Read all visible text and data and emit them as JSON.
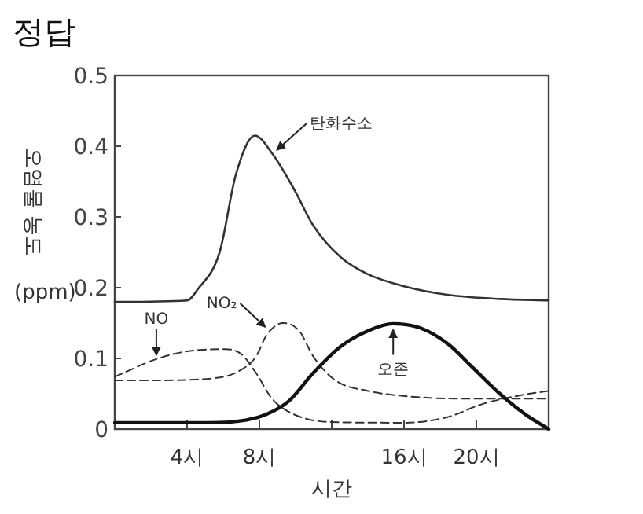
{
  "chart_data": {
    "type": "line",
    "title": "정답",
    "xlabel": "시간",
    "ylabel": "오염물 농도 (ppm)",
    "xlim": [
      0,
      24
    ],
    "xticks": [
      {
        "value": 4,
        "label": "4시"
      },
      {
        "value": 8,
        "label": "8시"
      },
      {
        "value": 12,
        "label": null
      },
      {
        "value": 16,
        "label": "16시"
      },
      {
        "value": 20,
        "label": "20시"
      }
    ],
    "ylim": [
      0,
      0.5
    ],
    "yticks": [
      0,
      0.1,
      0.2,
      0.3,
      0.4,
      0.5
    ],
    "grid": false,
    "marker": "none",
    "series": [
      {
        "color": "#333333",
        "line_style": "solid",
        "x": [
          0,
          4,
          4.6,
          5.8,
          6.7,
          7.75,
          8.7,
          9.9,
          11,
          12.5,
          14,
          16,
          18.4,
          21.3,
          24
        ],
        "values": [
          0.18,
          0.182,
          0.198,
          0.25,
          0.36,
          0.415,
          0.39,
          0.34,
          0.287,
          0.243,
          0.219,
          0.202,
          0.19,
          0.184,
          0.182
        ]
      },
      {
        "color": "#333333",
        "line_style": "dashed",
        "x": [
          0,
          2.3,
          4,
          6.1,
          7,
          7.8,
          8.7,
          9.9,
          11.9,
          16,
          18.4,
          20.4,
          22.7,
          24
        ],
        "values": [
          0.074,
          0.099,
          0.11,
          0.113,
          0.106,
          0.08,
          0.043,
          0.021,
          0.01,
          0.009,
          0.017,
          0.036,
          0.049,
          0.054
        ]
      },
      {
        "color": "#333333",
        "line_style": "dashed",
        "x": [
          0,
          2.3,
          5.8,
          7,
          7.8,
          8.4,
          9.3,
          10.2,
          11,
          12.2,
          14,
          16.9,
          19.8,
          24
        ],
        "values": [
          0.069,
          0.069,
          0.073,
          0.084,
          0.102,
          0.133,
          0.15,
          0.139,
          0.102,
          0.069,
          0.054,
          0.045,
          0.043,
          0.043
        ]
      },
      {
        "color": "#111111",
        "line_style": "solid",
        "x": [
          0,
          5.2,
          7.3,
          8.4,
          9.6,
          11,
          12.5,
          14,
          15.4,
          16.9,
          18.4,
          19.8,
          21.3,
          22.7,
          24
        ],
        "values": [
          0.009,
          0.009,
          0.013,
          0.021,
          0.039,
          0.08,
          0.117,
          0.139,
          0.149,
          0.143,
          0.121,
          0.087,
          0.05,
          0.021,
          0
        ]
      }
    ],
    "annotations": [
      {
        "text": "탄화수소",
        "x": 8.7,
        "y": 0.39
      },
      {
        "text": "NO",
        "x": 2.3,
        "y": 0.1
      },
      {
        "text": "NO₂",
        "x": 8.5,
        "y": 0.14
      },
      {
        "text": "오존",
        "x": 15.4,
        "y": 0.145
      }
    ]
  }
}
